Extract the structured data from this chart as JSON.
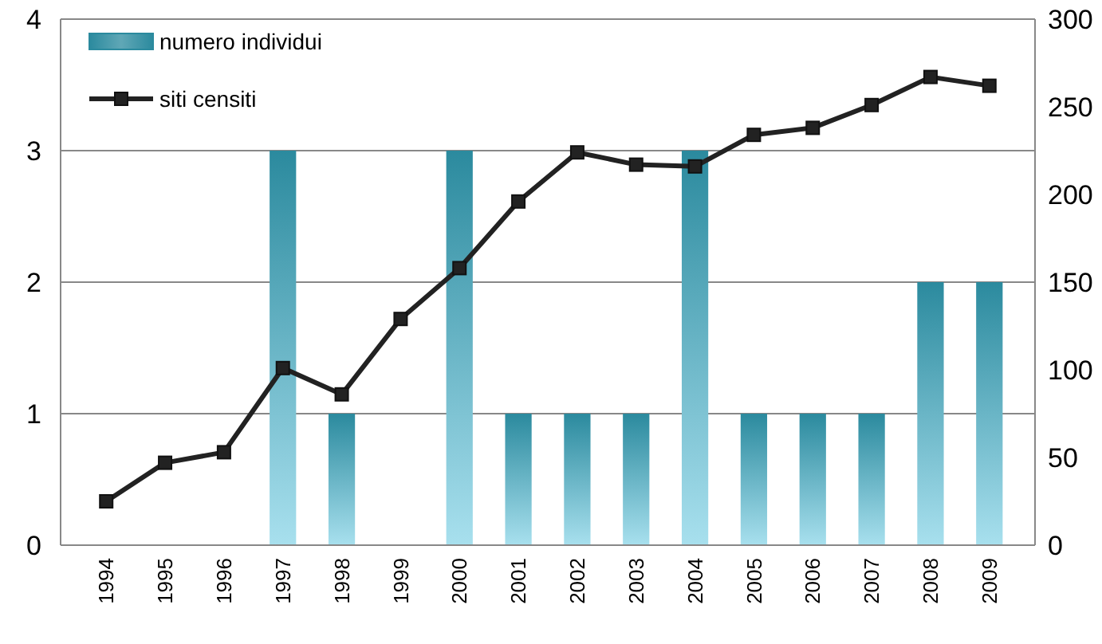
{
  "chart_data": {
    "type": "bar",
    "categories": [
      "1994",
      "1995",
      "1996",
      "1997",
      "1998",
      "1999",
      "2000",
      "2001",
      "2002",
      "2003",
      "2004",
      "2005",
      "2006",
      "2007",
      "2008",
      "2009"
    ],
    "series": [
      {
        "name": "numero individui",
        "color": "#2b8a9e",
        "values": [
          0,
          0,
          0,
          3,
          1,
          0,
          3,
          1,
          1,
          1,
          3,
          1,
          1,
          1,
          2,
          2
        ]
      },
      {
        "name": "siti censiti",
        "type": "line",
        "axis": "y2",
        "color": "#222222",
        "values": [
          25,
          47,
          53,
          101,
          86,
          129,
          158,
          196,
          224,
          217,
          216,
          234,
          238,
          251,
          267,
          262
        ]
      }
    ],
    "ylim": [
      0,
      4
    ],
    "yticks": [
      0,
      1,
      2,
      3,
      4
    ],
    "y2lim": [
      0,
      300
    ],
    "y2ticks": [
      0,
      50,
      100,
      150,
      200,
      250,
      300
    ],
    "grid": "y",
    "legend": "top left",
    "marker": "square",
    "line_style": "solid"
  }
}
